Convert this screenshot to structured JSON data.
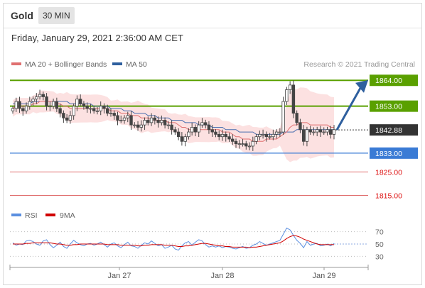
{
  "header": {
    "instrument": "Gold",
    "timeframe": "30 MIN"
  },
  "datetime": "Friday, January 29, 2021 2:36:00 AM CET",
  "legend": {
    "ma_bb": "MA 20 + Bollinger Bands",
    "ma50": "MA 50",
    "credit": "Research © 2021 Trading Central"
  },
  "rsi_legend": {
    "rsi": "RSI",
    "ma9": "9MA"
  },
  "colors": {
    "up_green": "#5aa000",
    "blue": "#3a7bd5",
    "red": "#e07070",
    "bb_fill": "#fbdcdc",
    "arrow": "#2e5f9e",
    "candle": "#444444",
    "rsi_blue": "#5b8fe0",
    "rsi_red": "#d00000"
  },
  "chart_data": [
    {
      "type": "line",
      "title": "",
      "x_ticks": [
        "Jan 27",
        "Jan 28",
        "Jan 29"
      ],
      "ylim": [
        1810,
        1868
      ],
      "levels": [
        {
          "label": "1864.00",
          "value": 1864.0,
          "kind": "resistance"
        },
        {
          "label": "1853.00",
          "value": 1853.0,
          "kind": "resistance"
        },
        {
          "label": "1842.88",
          "value": 1842.88,
          "kind": "last"
        },
        {
          "label": "1833.00",
          "value": 1833.0,
          "kind": "support"
        },
        {
          "label": "1825.00",
          "value": 1825.0,
          "kind": "support2"
        },
        {
          "label": "1815.00",
          "value": 1815.0,
          "kind": "support2"
        }
      ],
      "series": [
        {
          "name": "Price",
          "values": [
            1852,
            1855,
            1852,
            1851,
            1853,
            1855,
            1856,
            1857,
            1858,
            1857,
            1853,
            1853,
            1855,
            1852,
            1850,
            1848,
            1847,
            1849,
            1853,
            1856,
            1854,
            1853,
            1852,
            1852,
            1851,
            1851,
            1853,
            1852,
            1850,
            1850,
            1849,
            1847,
            1847,
            1848,
            1849,
            1845,
            1845,
            1844,
            1845,
            1847,
            1846,
            1848,
            1847,
            1846,
            1847,
            1845,
            1845,
            1843,
            1842,
            1840,
            1838,
            1840,
            1842,
            1844,
            1842,
            1845,
            1846,
            1845,
            1843,
            1842,
            1841,
            1840,
            1841,
            1840,
            1839,
            1838,
            1837,
            1837,
            1837,
            1836,
            1836,
            1838,
            1840,
            1841,
            1841,
            1840,
            1840,
            1841,
            1842,
            1842,
            1855,
            1860,
            1862,
            1850,
            1846,
            1843,
            1838,
            1843,
            1842,
            1842,
            1843,
            1842,
            1842,
            1843,
            1841,
            1843
          ]
        },
        {
          "name": "MA 20",
          "values": [
            1852,
            1853,
            1853,
            1853,
            1853,
            1853,
            1854,
            1854,
            1855,
            1855,
            1855,
            1855,
            1855,
            1854,
            1854,
            1853,
            1853,
            1852,
            1852,
            1852,
            1852,
            1852,
            1852,
            1852,
            1852,
            1852,
            1852,
            1852,
            1852,
            1851,
            1851,
            1851,
            1850,
            1850,
            1850,
            1849,
            1849,
            1849,
            1848,
            1848,
            1848,
            1847,
            1847,
            1847,
            1847,
            1847,
            1846,
            1846,
            1846,
            1845,
            1844,
            1844,
            1843,
            1843,
            1843,
            1843,
            1843,
            1843,
            1843,
            1843,
            1843,
            1843,
            1842,
            1842,
            1842,
            1841,
            1840,
            1840,
            1839,
            1839,
            1839,
            1838,
            1838,
            1838,
            1838,
            1839,
            1839,
            1839,
            1839,
            1840,
            1841,
            1842,
            1844,
            1845,
            1845,
            1846,
            1846,
            1846,
            1845,
            1845,
            1845,
            1845,
            1845,
            1845,
            1844,
            1844
          ]
        },
        {
          "name": "MA 50",
          "values": [
            1854,
            1854,
            1854,
            1854,
            1854,
            1854,
            1855,
            1855,
            1855,
            1855,
            1855,
            1855,
            1855,
            1855,
            1855,
            1855,
            1855,
            1854,
            1854,
            1854,
            1854,
            1854,
            1854,
            1854,
            1853,
            1853,
            1853,
            1853,
            1853,
            1852,
            1852,
            1852,
            1852,
            1851,
            1851,
            1851,
            1850,
            1850,
            1850,
            1850,
            1849,
            1849,
            1849,
            1848,
            1848,
            1848,
            1848,
            1847,
            1847,
            1847,
            1847,
            1846,
            1846,
            1846,
            1846,
            1845,
            1845,
            1845,
            1845,
            1844,
            1844,
            1844,
            1844,
            1843,
            1843,
            1843,
            1843,
            1842,
            1842,
            1842,
            1842,
            1842,
            1841,
            1841,
            1841,
            1841,
            1841,
            1841,
            1841,
            1841,
            1842,
            1842,
            1842,
            1842,
            1843,
            1843,
            1843,
            1843,
            1843,
            1843,
            1843,
            1843,
            1843,
            1843,
            1843,
            1843
          ]
        }
      ]
    },
    {
      "type": "line",
      "title": "",
      "y_ticks": [
        "70",
        "50",
        "30"
      ],
      "ylim": [
        20,
        80
      ],
      "series": [
        {
          "name": "RSI",
          "values": [
            52,
            48,
            50,
            49,
            55,
            56,
            54,
            50,
            48,
            55,
            57,
            49,
            44,
            48,
            53,
            46,
            43,
            50,
            56,
            52,
            49,
            47,
            50,
            51,
            48,
            50,
            53,
            49,
            45,
            50,
            52,
            47,
            44,
            49,
            53,
            47,
            46,
            43,
            48,
            52,
            50,
            55,
            51,
            47,
            49,
            43,
            45,
            48,
            42,
            40,
            47,
            52,
            54,
            48,
            53,
            57,
            55,
            49,
            45,
            47,
            45,
            47,
            44,
            46,
            45,
            43,
            42,
            44,
            46,
            43,
            44,
            48,
            50,
            54,
            51,
            48,
            50,
            52,
            54,
            56,
            66,
            76,
            73,
            64,
            56,
            51,
            44,
            54,
            48,
            50,
            51,
            47,
            48,
            50,
            47,
            51
          ]
        },
        {
          "name": "9MA",
          "values": [
            50,
            50,
            50,
            50,
            51,
            51,
            52,
            52,
            52,
            52,
            52,
            52,
            51,
            50,
            50,
            49,
            48,
            48,
            49,
            49,
            50,
            50,
            50,
            50,
            50,
            50,
            50,
            50,
            49,
            49,
            49,
            49,
            48,
            48,
            48,
            48,
            48,
            47,
            47,
            48,
            48,
            49,
            49,
            49,
            49,
            48,
            48,
            48,
            47,
            46,
            46,
            47,
            47,
            48,
            49,
            50,
            51,
            51,
            50,
            49,
            48,
            47,
            47,
            46,
            46,
            45,
            45,
            45,
            45,
            45,
            44,
            45,
            45,
            46,
            47,
            48,
            49,
            50,
            51,
            52,
            55,
            59,
            62,
            64,
            63,
            61,
            58,
            56,
            54,
            52,
            50,
            49,
            49,
            49,
            49,
            49
          ]
        }
      ]
    }
  ]
}
